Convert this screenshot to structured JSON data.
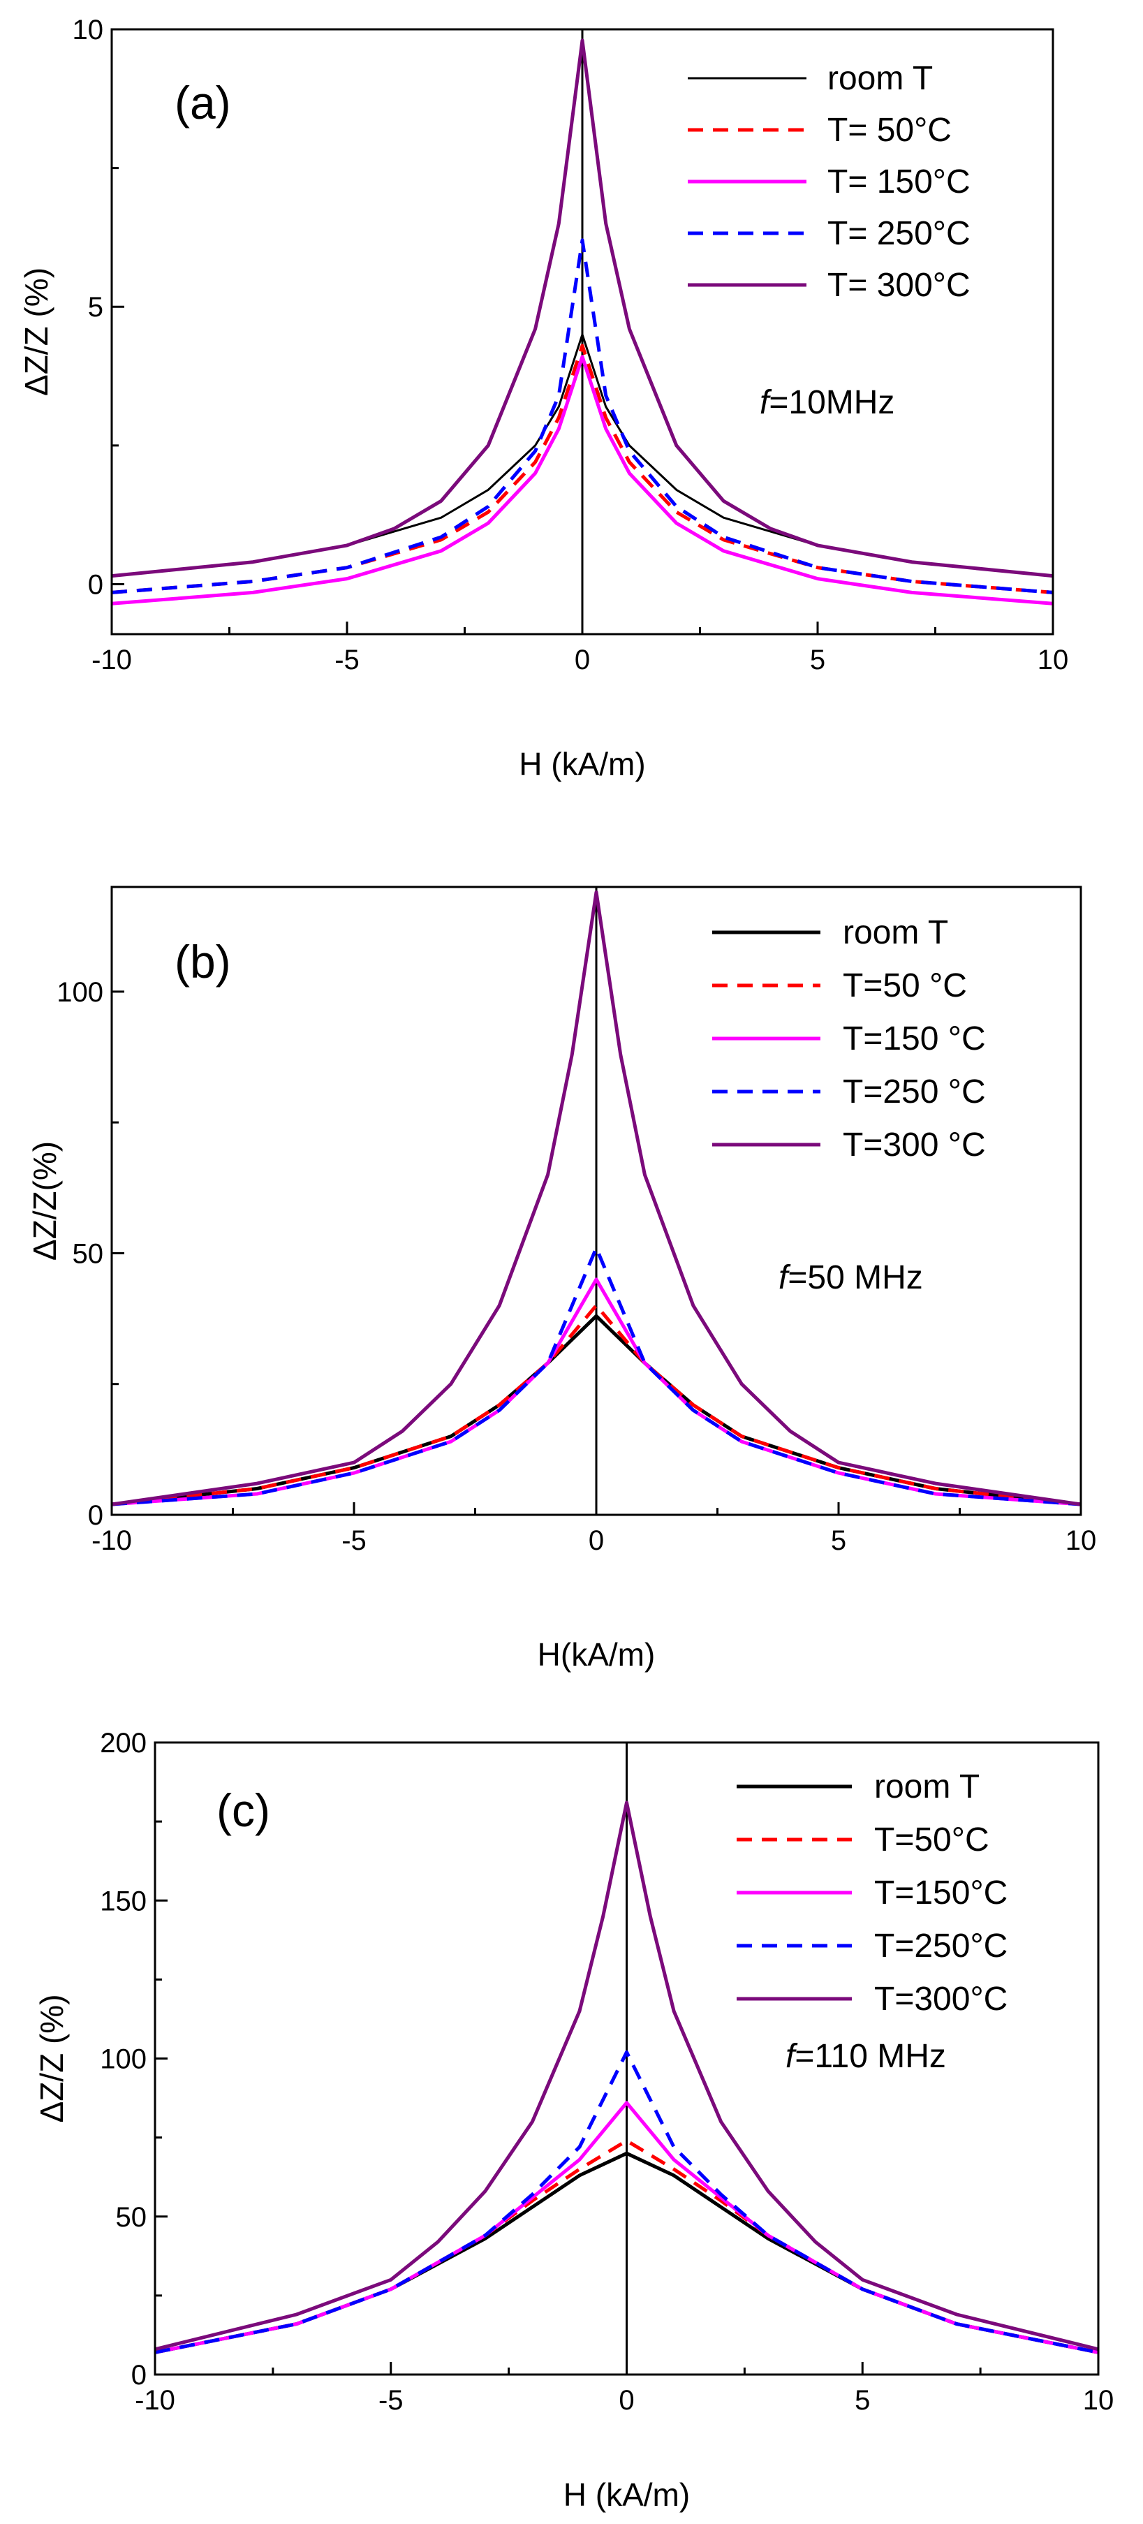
{
  "colors": {
    "room T": "#000000",
    "T= 50°C": "#ff0000",
    "T= 150°C": "#ff00ff",
    "T= 250°C": "#0000ff",
    "T= 300°C": "#7b0a7b"
  },
  "chart_data": [
    {
      "type": "line",
      "panel_label": "(a)",
      "xlabel": "H (kA/m)",
      "ylabel": "ΔZ/Z (%)",
      "xlim": [
        -10,
        10
      ],
      "ylim": [
        -0.9,
        10
      ],
      "xticks": [
        -10,
        -5,
        0,
        5,
        10
      ],
      "yticks": [
        0,
        5,
        10
      ],
      "x_tick_labels": [
        "-10",
        "-5",
        "0",
        "5",
        "10"
      ],
      "y_tick_labels": [
        "0",
        "5",
        "10"
      ],
      "frequency_prefix": "f",
      "frequency_rest": "=10MHz",
      "legend_position": "top-right",
      "series": [
        {
          "name": "room T",
          "style": "solid",
          "x": [
            -10,
            -7,
            -5,
            -3,
            -2,
            -1,
            -0.5,
            0,
            0.5,
            1,
            2,
            3,
            5,
            7,
            10
          ],
          "y": [
            0.15,
            0.4,
            0.7,
            1.2,
            1.7,
            2.5,
            3.2,
            4.5,
            3.2,
            2.5,
            1.7,
            1.2,
            0.7,
            0.4,
            0.15
          ]
        },
        {
          "name": "T= 50°C",
          "style": "dashed",
          "x": [
            -10,
            -7,
            -5,
            -3,
            -2,
            -1,
            -0.5,
            0,
            0.5,
            1,
            2,
            3,
            5,
            7,
            10
          ],
          "y": [
            -0.15,
            0.05,
            0.3,
            0.8,
            1.3,
            2.2,
            3.0,
            4.3,
            3.0,
            2.2,
            1.3,
            0.8,
            0.3,
            0.05,
            -0.15
          ]
        },
        {
          "name": "T= 150°C",
          "style": "solid",
          "x": [
            -10,
            -7,
            -5,
            -3,
            -2,
            -1,
            -0.5,
            0,
            0.5,
            1,
            2,
            3,
            5,
            7,
            10
          ],
          "y": [
            -0.35,
            -0.15,
            0.1,
            0.6,
            1.1,
            2.0,
            2.8,
            4.1,
            2.8,
            2.0,
            1.1,
            0.6,
            0.1,
            -0.15,
            -0.35
          ]
        },
        {
          "name": "T= 250°C",
          "style": "dashed",
          "x": [
            -10,
            -7,
            -5,
            -3,
            -2,
            -1,
            -0.5,
            0,
            0.5,
            1,
            2,
            3,
            5,
            7,
            10
          ],
          "y": [
            -0.15,
            0.05,
            0.3,
            0.85,
            1.4,
            2.4,
            3.4,
            6.2,
            3.4,
            2.4,
            1.4,
            0.85,
            0.3,
            0.05,
            -0.15
          ]
        },
        {
          "name": "T= 300°C",
          "style": "solid",
          "x": [
            -10,
            -7,
            -5,
            -4,
            -3,
            -2,
            -1,
            -0.5,
            0,
            0.5,
            1,
            2,
            3,
            4,
            5,
            7,
            10
          ],
          "y": [
            0.15,
            0.4,
            0.7,
            1.0,
            1.5,
            2.5,
            4.6,
            6.5,
            9.8,
            6.5,
            4.6,
            2.5,
            1.5,
            1.0,
            0.7,
            0.4,
            0.15
          ]
        }
      ]
    },
    {
      "type": "line",
      "panel_label": "(b)",
      "xlabel": "H(kA/m)",
      "ylabel": "ΔZ/Z(%)",
      "xlim": [
        -10,
        10
      ],
      "ylim": [
        0,
        120
      ],
      "xticks": [
        -10,
        -5,
        0,
        5,
        10
      ],
      "yticks": [
        0,
        50,
        100
      ],
      "x_tick_labels": [
        "-10",
        "-5",
        "0",
        "5",
        "10"
      ],
      "y_tick_labels": [
        "0",
        "50",
        "100"
      ],
      "frequency_prefix": "f",
      "frequency_rest": "=50 MHz",
      "legend_position": "top-right",
      "series": [
        {
          "name": "room T",
          "style": "solid",
          "x": [
            -10,
            -7,
            -5,
            -3,
            -2,
            -1,
            0,
            1,
            2,
            3,
            5,
            7,
            10
          ],
          "y": [
            2,
            5,
            9,
            15,
            21,
            29,
            38,
            29,
            21,
            15,
            9,
            5,
            2
          ]
        },
        {
          "name": "T=50 °C",
          "style": "dashed",
          "x": [
            -10,
            -7,
            -5,
            -3,
            -2,
            -1,
            0,
            1,
            2,
            3,
            5,
            7,
            10
          ],
          "y": [
            2,
            5,
            9,
            15,
            21,
            29,
            40,
            29,
            21,
            15,
            9,
            5,
            2
          ]
        },
        {
          "name": "T=150 °C",
          "style": "solid",
          "x": [
            -10,
            -7,
            -5,
            -3,
            -2,
            -1,
            0,
            1,
            2,
            3,
            5,
            7,
            10
          ],
          "y": [
            2,
            4,
            8,
            14,
            20,
            29,
            45,
            29,
            20,
            14,
            8,
            4,
            2
          ]
        },
        {
          "name": "T=250 °C",
          "style": "dashed",
          "x": [
            -10,
            -7,
            -5,
            -3,
            -2,
            -1,
            0,
            1,
            2,
            3,
            5,
            7,
            10
          ],
          "y": [
            2,
            4,
            8,
            14,
            20,
            29,
            51,
            29,
            20,
            14,
            8,
            4,
            2
          ]
        },
        {
          "name": "T=300 °C",
          "style": "solid",
          "x": [
            -10,
            -7,
            -5,
            -4,
            -3,
            -2,
            -1,
            -0.5,
            0,
            0.5,
            1,
            2,
            3,
            4,
            5,
            7,
            10
          ],
          "y": [
            2,
            6,
            10,
            16,
            25,
            40,
            65,
            88,
            119,
            88,
            65,
            40,
            25,
            16,
            10,
            6,
            2
          ]
        }
      ]
    },
    {
      "type": "line",
      "panel_label": "(c)",
      "xlabel": "H (kA/m)",
      "ylabel": "ΔZ/Z (%)",
      "xlim": [
        -10,
        10
      ],
      "ylim": [
        0,
        200
      ],
      "xticks": [
        -10,
        -5,
        0,
        5,
        10
      ],
      "yticks": [
        0,
        50,
        100,
        150,
        200
      ],
      "x_tick_labels": [
        "-10",
        "-5",
        "0",
        "5",
        "10"
      ],
      "y_tick_labels": [
        "0",
        "50",
        "100",
        "150",
        "200"
      ],
      "frequency_prefix": "f",
      "frequency_rest": "=110 MHz",
      "legend_position": "top-right",
      "series": [
        {
          "name": "room T",
          "style": "solid",
          "x": [
            -10,
            -7,
            -5,
            -3,
            -2,
            -1,
            0,
            1,
            2,
            3,
            5,
            7,
            10
          ],
          "y": [
            7,
            16,
            27,
            43,
            53,
            63,
            70,
            63,
            53,
            43,
            27,
            16,
            7
          ]
        },
        {
          "name": "T=50°C",
          "style": "dashed",
          "x": [
            -10,
            -7,
            -5,
            -3,
            -2,
            -1,
            0,
            1,
            2,
            3,
            5,
            7,
            10
          ],
          "y": [
            7,
            16,
            27,
            44,
            55,
            65,
            74,
            65,
            55,
            44,
            27,
            16,
            7
          ]
        },
        {
          "name": "T=150°C",
          "style": "solid",
          "x": [
            -10,
            -7,
            -5,
            -3,
            -2,
            -1,
            0,
            1,
            2,
            3,
            5,
            7,
            10
          ],
          "y": [
            7,
            16,
            27,
            44,
            56,
            68,
            86,
            68,
            56,
            44,
            27,
            16,
            7
          ]
        },
        {
          "name": "T=250°C",
          "style": "dashed",
          "x": [
            -10,
            -7,
            -5,
            -3,
            -2,
            -1,
            0,
            1,
            2,
            3,
            5,
            7,
            10
          ],
          "y": [
            7,
            16,
            27,
            44,
            57,
            72,
            102,
            72,
            57,
            44,
            27,
            16,
            7
          ]
        },
        {
          "name": "T=300°C",
          "style": "solid",
          "x": [
            -10,
            -7,
            -5,
            -4,
            -3,
            -2,
            -1,
            -0.5,
            0,
            0.5,
            1,
            2,
            3,
            4,
            5,
            7,
            10
          ],
          "y": [
            8,
            19,
            30,
            42,
            58,
            80,
            115,
            145,
            181,
            145,
            115,
            80,
            58,
            42,
            30,
            19,
            8
          ]
        }
      ]
    }
  ]
}
